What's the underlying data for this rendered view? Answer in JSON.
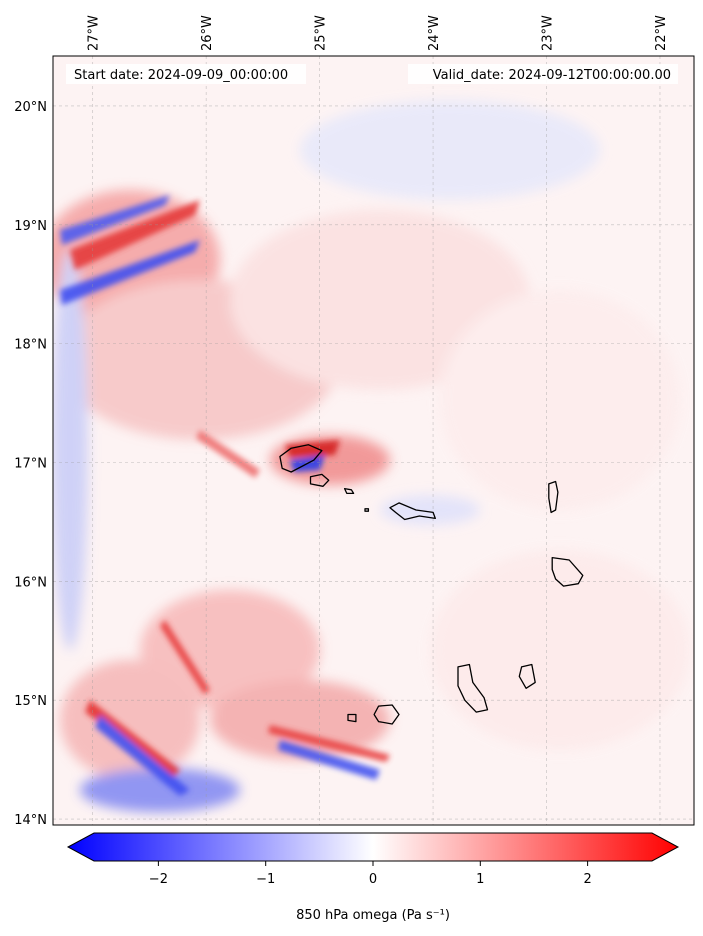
{
  "header": {
    "start_date": "Start date: 2024-09-09_00:00:00",
    "valid_date": "Valid_date: 2024-09-12T00:00:00.00"
  },
  "map": {
    "lon_range": [
      -27.35,
      -21.7
    ],
    "lat_range": [
      13.95,
      20.42
    ],
    "lon_ticks": [
      {
        "value": -27,
        "label": "27°W"
      },
      {
        "value": -26,
        "label": "26°W"
      },
      {
        "value": -25,
        "label": "25°W"
      },
      {
        "value": -24,
        "label": "24°W"
      },
      {
        "value": -23,
        "label": "23°W"
      },
      {
        "value": -22,
        "label": "22°W"
      }
    ],
    "lat_ticks": [
      {
        "value": 20,
        "label": "20°N"
      },
      {
        "value": 19,
        "label": "19°N"
      },
      {
        "value": 18,
        "label": "18°N"
      },
      {
        "value": 17,
        "label": "17°N"
      },
      {
        "value": 16,
        "label": "16°N"
      },
      {
        "value": 15,
        "label": "15°N"
      },
      {
        "value": 14,
        "label": "14°N"
      }
    ],
    "gridlines": true,
    "coastline_color": "#000000",
    "islands": [
      {
        "name": "Santo Antão",
        "outline": [
          [
            -25.35,
            17.05
          ],
          [
            -25.25,
            17.12
          ],
          [
            -25.1,
            17.15
          ],
          [
            -24.98,
            17.1
          ],
          [
            -25.05,
            17.02
          ],
          [
            -25.25,
            16.92
          ],
          [
            -25.33,
            16.95
          ]
        ]
      },
      {
        "name": "São Vicente",
        "outline": [
          [
            -25.08,
            16.88
          ],
          [
            -24.98,
            16.9
          ],
          [
            -24.92,
            16.85
          ],
          [
            -24.97,
            16.8
          ],
          [
            -25.08,
            16.82
          ]
        ]
      },
      {
        "name": "Santa Luzia",
        "outline": [
          [
            -24.78,
            16.78
          ],
          [
            -24.72,
            16.77
          ],
          [
            -24.7,
            16.74
          ],
          [
            -24.76,
            16.74
          ]
        ]
      },
      {
        "name": "São Nicolau",
        "outline": [
          [
            -24.38,
            16.62
          ],
          [
            -24.3,
            16.66
          ],
          [
            -24.15,
            16.6
          ],
          [
            -24.0,
            16.58
          ],
          [
            -23.98,
            16.53
          ],
          [
            -24.12,
            16.55
          ],
          [
            -24.25,
            16.52
          ],
          [
            -24.33,
            16.58
          ]
        ]
      },
      {
        "name": "Raso",
        "outline": [
          [
            -24.6,
            16.61
          ],
          [
            -24.57,
            16.61
          ],
          [
            -24.57,
            16.59
          ],
          [
            -24.6,
            16.59
          ]
        ]
      },
      {
        "name": "Sal",
        "outline": [
          [
            -22.98,
            16.82
          ],
          [
            -22.92,
            16.84
          ],
          [
            -22.9,
            16.75
          ],
          [
            -22.92,
            16.6
          ],
          [
            -22.96,
            16.58
          ],
          [
            -22.98,
            16.7
          ]
        ]
      },
      {
        "name": "Boa Vista",
        "outline": [
          [
            -22.95,
            16.2
          ],
          [
            -22.8,
            16.18
          ],
          [
            -22.68,
            16.05
          ],
          [
            -22.72,
            15.98
          ],
          [
            -22.85,
            15.96
          ],
          [
            -22.92,
            16.02
          ],
          [
            -22.95,
            16.1
          ]
        ]
      },
      {
        "name": "Maio",
        "outline": [
          [
            -23.22,
            15.28
          ],
          [
            -23.13,
            15.3
          ],
          [
            -23.1,
            15.15
          ],
          [
            -23.18,
            15.1
          ],
          [
            -23.24,
            15.2
          ]
        ]
      },
      {
        "name": "Santiago",
        "outline": [
          [
            -23.78,
            15.28
          ],
          [
            -23.68,
            15.3
          ],
          [
            -23.65,
            15.15
          ],
          [
            -23.55,
            15.02
          ],
          [
            -23.52,
            14.92
          ],
          [
            -23.62,
            14.9
          ],
          [
            -23.72,
            15.0
          ],
          [
            -23.78,
            15.12
          ]
        ]
      },
      {
        "name": "Fogo",
        "outline": [
          [
            -24.48,
            14.95
          ],
          [
            -24.36,
            14.96
          ],
          [
            -24.3,
            14.88
          ],
          [
            -24.36,
            14.8
          ],
          [
            -24.48,
            14.82
          ],
          [
            -24.52,
            14.88
          ]
        ]
      },
      {
        "name": "Brava",
        "outline": [
          [
            -24.75,
            14.88
          ],
          [
            -24.68,
            14.88
          ],
          [
            -24.68,
            14.82
          ],
          [
            -24.75,
            14.83
          ]
        ]
      }
    ]
  },
  "colorbar": {
    "label": "850 hPa omega (Pa s⁻¹)",
    "min": -2.6,
    "max": 2.6,
    "ticks": [
      {
        "value": -2,
        "label": "−2"
      },
      {
        "value": -1,
        "label": "−1"
      },
      {
        "value": 0,
        "label": "0"
      },
      {
        "value": 1,
        "label": "1"
      },
      {
        "value": 2,
        "label": "2"
      }
    ],
    "colormap": "bwr",
    "color_low": "#0000ff",
    "color_mid": "#ffffff",
    "color_high": "#ff0000"
  }
}
